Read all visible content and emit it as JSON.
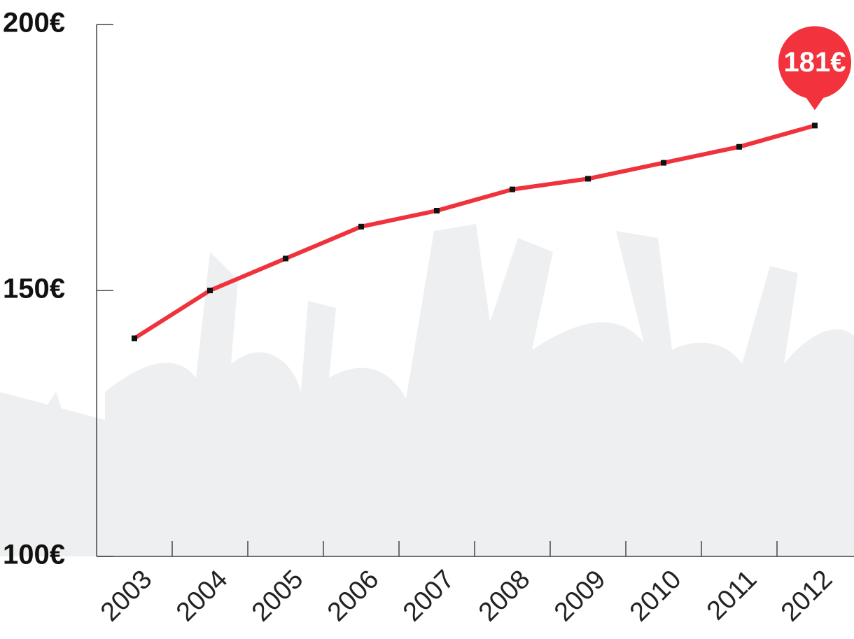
{
  "chart_data": {
    "type": "line",
    "categories": [
      "2003",
      "2004",
      "2005",
      "2006",
      "2007",
      "2008",
      "2009",
      "2010",
      "2011",
      "2012"
    ],
    "series": [
      {
        "color": "#f0323c",
        "values": [
          141,
          150,
          156,
          162,
          165,
          169,
          171,
          174,
          177,
          181
        ],
        "value_labels": [
          null,
          null,
          null,
          null,
          null,
          null,
          null,
          null,
          null,
          "181€"
        ]
      }
    ],
    "ylim": [
      100,
      200
    ],
    "yticks": [
      {
        "value": 100,
        "label": "100€"
      },
      {
        "value": 150,
        "label": "150€"
      },
      {
        "value": 200,
        "label": "200€"
      }
    ]
  }
}
